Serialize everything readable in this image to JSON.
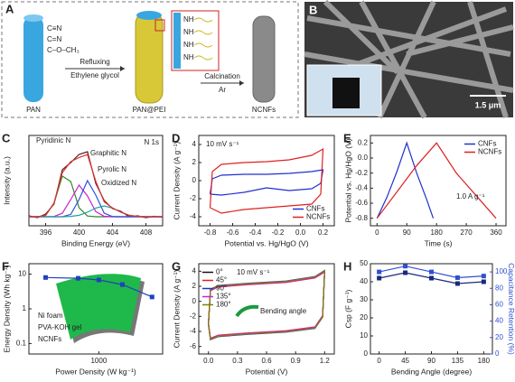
{
  "figure": {
    "panel_a": {
      "label": "A",
      "pan": "PAN",
      "pan_pei": "PAN@PEI",
      "ncnfs": "NCNFs",
      "step1": "Refluxing",
      "step1_sub": "Ethylene glycol",
      "step2": "Calcination",
      "step2_sub": "Ar",
      "groups": [
        "C≡N",
        "C=N",
        "C–O–CH₃"
      ],
      "zoom": [
        "NH",
        "NH",
        "NH",
        "NH"
      ]
    },
    "panel_b": {
      "label": "B",
      "scale": "1.5 μm"
    }
  },
  "chart_data": [
    {
      "type": "line",
      "panel": "C",
      "xlabel": "Binding Energy (eV)",
      "ylabel": "Intensity (a.u.)",
      "annotations": [
        "N 1s",
        "Pyridinic N",
        "Graphitic N",
        "Pyrolic N",
        "Oxidized N"
      ],
      "xlim": [
        394,
        410
      ],
      "xticks": [
        396,
        400,
        404,
        408
      ],
      "ylim": [
        0,
        10
      ],
      "yticks": [],
      "x": [
        394,
        395,
        396,
        397,
        398,
        399,
        400,
        401,
        402,
        403,
        404,
        405,
        406,
        407,
        408,
        409,
        410
      ],
      "series": [
        {
          "color": "#5a1a1a",
          "values": [
            1.1,
            0.9,
            1.3,
            2.4,
            6.2,
            7.0,
            7.9,
            8.2,
            4.7,
            2.8,
            1.9,
            1.6,
            1.0,
            1.1,
            0.9,
            1.05,
            0.95
          ]
        },
        {
          "color": "#2a8a2a",
          "values": [
            1,
            1,
            1.14,
            2.5,
            5.5,
            4.9,
            2,
            1.08,
            1,
            1,
            1,
            1,
            1,
            1,
            1,
            1,
            1
          ]
        },
        {
          "color": "#d020d0",
          "values": [
            1,
            1,
            1,
            1.03,
            1.39,
            2.9,
            4.5,
            3.3,
            1.57,
            1.05,
            1,
            1,
            1,
            1,
            1,
            1,
            1
          ]
        },
        {
          "color": "#3050e0",
          "values": [
            1,
            1,
            1,
            1,
            1,
            1.26,
            2.9,
            5,
            3.4,
            1.4,
            1.02,
            1,
            1,
            1,
            1,
            1,
            1
          ]
        },
        {
          "color": "#20a0a0",
          "values": [
            1,
            1,
            1,
            1,
            1,
            1.04,
            1.16,
            1.5,
            1.96,
            2.2,
            1.96,
            1.5,
            1.16,
            1.03,
            1,
            1,
            1
          ]
        },
        {
          "color": "#e03030",
          "values": [
            1,
            1,
            1.14,
            2.53,
            5.89,
            7.1,
            7.56,
            7.88,
            4.93,
            2.65,
            1.98,
            1.5,
            1.16,
            1.03,
            1,
            1,
            1
          ]
        }
      ]
    },
    {
      "type": "line",
      "panel": "D",
      "xlabel": "Potential vs. Hg/HgO (V)",
      "ylabel": "Current Density (A g⁻¹)",
      "annotations": [
        "10 mV s⁻¹"
      ],
      "legend": "lower right",
      "xlim": [
        -0.9,
        0.3
      ],
      "xticks": [
        -0.8,
        -0.6,
        -0.4,
        -0.2,
        {
          "value": 0,
          "label": "0.0"
        },
        0.2
      ],
      "ylim": [
        -5,
        5
      ],
      "yticks": [
        -4,
        -2,
        0,
        2,
        4
      ],
      "x": [
        -0.8,
        -0.78,
        -0.7,
        -0.5,
        -0.3,
        -0.1,
        0.1,
        0.2,
        0.18,
        0.1,
        -0.1,
        -0.3,
        -0.5,
        -0.7,
        -0.8
      ],
      "series": [
        {
          "name": "CNFs",
          "color": "#2030d0",
          "values": [
            -1.5,
            0.2,
            0.6,
            0.7,
            0.7,
            0.8,
            1.0,
            1.2,
            -0.3,
            -0.9,
            -1.1,
            -0.8,
            -1.3,
            -1.6,
            -1.5
          ]
        },
        {
          "name": "NCNFs",
          "color": "#e02020",
          "values": [
            -3,
            1.0,
            1.8,
            2.0,
            2.1,
            2.3,
            2.8,
            3.5,
            -1.5,
            -2.6,
            -2.8,
            -3.0,
            -3.2,
            -3.6,
            -3
          ]
        }
      ]
    },
    {
      "type": "line",
      "panel": "E",
      "xlabel": "Time (s)",
      "ylabel": "Potential vs. Hg/HgO (V)",
      "annotations": [
        "1.0 A g⁻¹"
      ],
      "legend": "upper right",
      "xlim": [
        -20,
        390
      ],
      "xticks": [
        0,
        90,
        180,
        270,
        360
      ],
      "ylim": [
        -0.9,
        0.3
      ],
      "yticks": [
        0.2,
        {
          "value": 0,
          "label": "0.0"
        },
        -0.2,
        -0.4,
        -0.6,
        -0.8
      ],
      "series": [
        {
          "name": "CNFs",
          "color": "#2030d0",
          "x": [
            0,
            30,
            60,
            90,
            120,
            150,
            170
          ],
          "values": [
            -0.8,
            -0.52,
            -0.18,
            0.2,
            -0.2,
            -0.55,
            -0.8
          ]
        },
        {
          "name": "NCNFs",
          "color": "#e02020",
          "x": [
            0,
            60,
            120,
            180,
            240,
            300,
            360
          ],
          "values": [
            -0.8,
            -0.45,
            -0.1,
            0.2,
            -0.2,
            -0.5,
            -0.8
          ]
        }
      ]
    },
    {
      "type": "line",
      "panel": "F",
      "xlabel": "Power Density (W kg⁻¹)",
      "ylabel": "Energy Density (Wh kg⁻¹)",
      "annotations": [
        "Ni foam",
        "PVA-KOH gel",
        "NCNFs"
      ],
      "xscale": "log",
      "yscale": "log",
      "xlim": [
        300,
        3000
      ],
      "xticks": [
        1000
      ],
      "ylim": [
        0.05,
        20
      ],
      "yticks": [
        0.1,
        1,
        10
      ],
      "series": [
        {
          "color": "#2040c0",
          "marker": "square",
          "x": [
            400,
            700,
            1000,
            1500,
            2500
          ],
          "values": [
            8,
            7.6,
            6.8,
            5,
            2.2
          ]
        }
      ]
    },
    {
      "type": "line",
      "panel": "G",
      "xlabel": "Potential (V)",
      "ylabel": "Current Density (A g⁻¹)",
      "annotations": [
        "10 mV s⁻¹",
        "Bending angle"
      ],
      "legend": "upper left",
      "xlim": [
        -0.1,
        1.3
      ],
      "xticks": [
        {
          "value": 0,
          "label": "0.0"
        },
        0.3,
        0.6,
        0.9,
        {
          "value": 1.2,
          "label": "1.2"
        }
      ],
      "ylim": [
        -7,
        5
      ],
      "yticks": [
        -6,
        -4,
        -2,
        0,
        2,
        4
      ],
      "x": [
        0,
        0.02,
        0.1,
        0.4,
        0.8,
        1.1,
        1.2,
        1.18,
        1.1,
        0.8,
        0.4,
        0.1,
        0.02,
        0
      ],
      "series": [
        {
          "name": "0°",
          "color": "#111111",
          "values": [
            -3,
            1.5,
            2,
            2.3,
            2.6,
            3.2,
            4,
            -2,
            -3.5,
            -4,
            -4.3,
            -4.6,
            -5,
            -3
          ]
        },
        {
          "name": "45°",
          "color": "#e02020",
          "values": [
            -2.9,
            1.4,
            1.9,
            2.2,
            2.5,
            3.1,
            3.9,
            -1.9,
            -3.4,
            -3.9,
            -4.2,
            -4.5,
            -4.9,
            -2.9
          ]
        },
        {
          "name": "90°",
          "color": "#2030d0",
          "values": [
            -3.1,
            1.6,
            2.1,
            2.4,
            2.7,
            3.3,
            4.1,
            -2.1,
            -3.6,
            -4.1,
            -4.4,
            -4.7,
            -5.1,
            -3.1
          ]
        },
        {
          "name": "135°",
          "color": "#d020d0",
          "values": [
            -2.95,
            1.45,
            1.95,
            2.25,
            2.55,
            3.15,
            3.95,
            -1.95,
            -3.45,
            -3.95,
            -4.25,
            -4.55,
            -4.95,
            -2.95
          ]
        },
        {
          "name": "180°",
          "color": "#808000",
          "values": [
            -3.05,
            1.55,
            2.05,
            2.35,
            2.65,
            3.25,
            4.05,
            -2.05,
            -3.55,
            -4.05,
            -4.35,
            -4.65,
            -5.05,
            -3.05
          ]
        }
      ]
    },
    {
      "type": "line",
      "panel": "H",
      "xlabel": "Bending Angle (degree)",
      "ylabel": "Csp (F g⁻¹)",
      "y2label": "Capacitance Retention (%)",
      "xlim": [
        -15,
        195
      ],
      "xticks": [
        0,
        45,
        90,
        135,
        180
      ],
      "ylim": [
        0,
        50
      ],
      "yticks": [
        0,
        10,
        20,
        30,
        40,
        50
      ],
      "y2lim": [
        0,
        110
      ],
      "y2ticks": [
        0,
        20,
        40,
        60,
        80,
        100
      ],
      "y2color": "#3050d0",
      "x": [
        0,
        45,
        90,
        135,
        180
      ],
      "series": [
        {
          "color": "#1a2a7a",
          "marker": "square",
          "values": [
            42,
            45,
            42,
            39,
            40
          ]
        },
        {
          "color": "#3050d0",
          "marker": "square",
          "axis": "y2",
          "values": [
            100,
            107,
            100,
            93,
            95
          ]
        }
      ]
    }
  ]
}
